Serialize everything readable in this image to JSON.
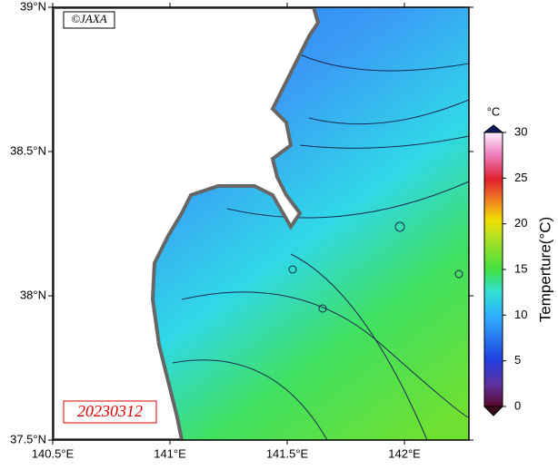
{
  "map": {
    "credit": "©JAXA",
    "date": "20230312",
    "xlim": [
      140.5,
      142.275
    ],
    "ylim": [
      37.5,
      39
    ],
    "xticks": [
      {
        "value": 140.5,
        "label": "140.5°E"
      },
      {
        "value": 141,
        "label": "141°E"
      },
      {
        "value": 141.5,
        "label": "141.5°E"
      },
      {
        "value": 142,
        "label": "142°E"
      }
    ],
    "yticks": [
      {
        "value": 39,
        "label": "39°N"
      },
      {
        "value": 38.5,
        "label": "38.5°N"
      },
      {
        "value": 38,
        "label": "38°N"
      },
      {
        "value": 37.5,
        "label": "37.5°N"
      }
    ]
  },
  "colorbar": {
    "unit": "°C",
    "title": "Temperture(°C)",
    "lim": [
      0,
      30
    ],
    "ticks": [
      0,
      5,
      10,
      15,
      20,
      25,
      30
    ]
  }
}
